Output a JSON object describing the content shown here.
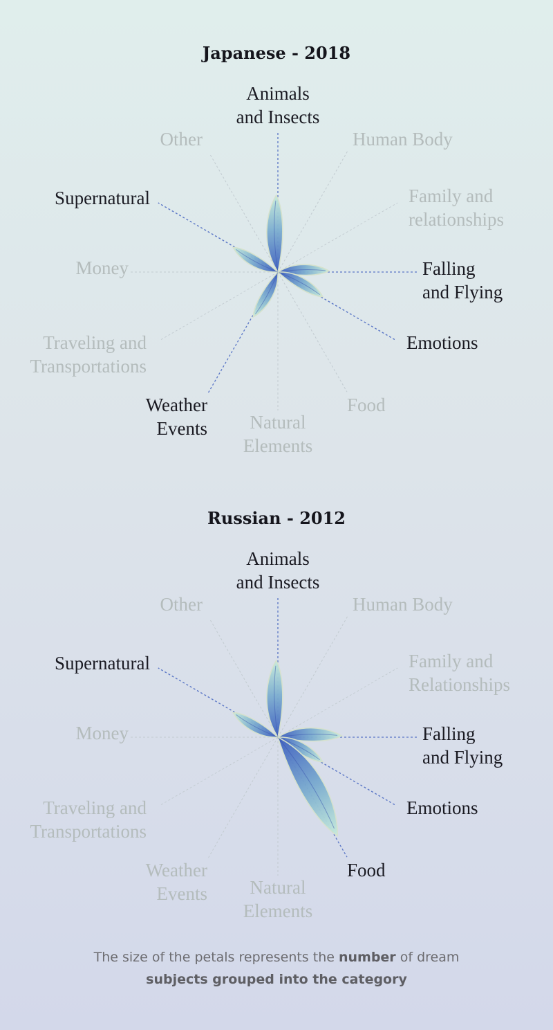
{
  "chart_data": [
    {
      "type": "radial-petal",
      "title": "Japanese - 2018",
      "categories": [
        {
          "label": "Animals\nand Insects",
          "value": 3,
          "highlighted": true
        },
        {
          "label": "Human Body",
          "value": 0,
          "highlighted": false
        },
        {
          "label": "Family and\nrelationships",
          "value": 0,
          "highlighted": false
        },
        {
          "label": "Falling\nand Flying",
          "value": 2,
          "highlighted": true
        },
        {
          "label": "Emotions",
          "value": 2,
          "highlighted": true
        },
        {
          "label": "Food",
          "value": 0,
          "highlighted": false
        },
        {
          "label": "Natural\nElements",
          "value": 0,
          "highlighted": false
        },
        {
          "label": "Weather\nEvents",
          "value": 2,
          "highlighted": true
        },
        {
          "label": "Traveling and\nTransportations",
          "value": 0,
          "highlighted": false
        },
        {
          "label": "Money",
          "value": 0,
          "highlighted": false
        },
        {
          "label": "Supernatural",
          "value": 2,
          "highlighted": true
        },
        {
          "label": "Other",
          "value": 0,
          "highlighted": false
        }
      ]
    },
    {
      "type": "radial-petal",
      "title": "Russian - 2012",
      "categories": [
        {
          "label": "Animals\nand Insects",
          "value": 3,
          "highlighted": true
        },
        {
          "label": "Human Body",
          "value": 0,
          "highlighted": false
        },
        {
          "label": "Family and\nRelationships",
          "value": 0,
          "highlighted": false
        },
        {
          "label": "Falling\nand Flying",
          "value": 2.5,
          "highlighted": true
        },
        {
          "label": "Emotions",
          "value": 2,
          "highlighted": true
        },
        {
          "label": "Food",
          "value": 4.5,
          "highlighted": true
        },
        {
          "label": "Natural\nElements",
          "value": 0,
          "highlighted": false
        },
        {
          "label": "Weather\nEvents",
          "value": 0,
          "highlighted": false
        },
        {
          "label": "Traveling and\nTransportations",
          "value": 0,
          "highlighted": false
        },
        {
          "label": "Money",
          "value": 0,
          "highlighted": false
        },
        {
          "label": "Supernatural",
          "value": 2,
          "highlighted": true
        },
        {
          "label": "Other",
          "value": 0,
          "highlighted": false
        }
      ]
    }
  ],
  "caption": {
    "part1": "The size of the petals represents the ",
    "bold1": "number",
    "part2": " of dream",
    "bold2": "subjects grouped into the category"
  },
  "colors": {
    "petal_dark": "#3e5fc0",
    "petal_light": "#c7ecdc",
    "active_line": "#5a76c6",
    "inactive_line": "#c2cbd0",
    "active_text": "#1a1a22",
    "inactive_text": "#b4bcbc"
  }
}
